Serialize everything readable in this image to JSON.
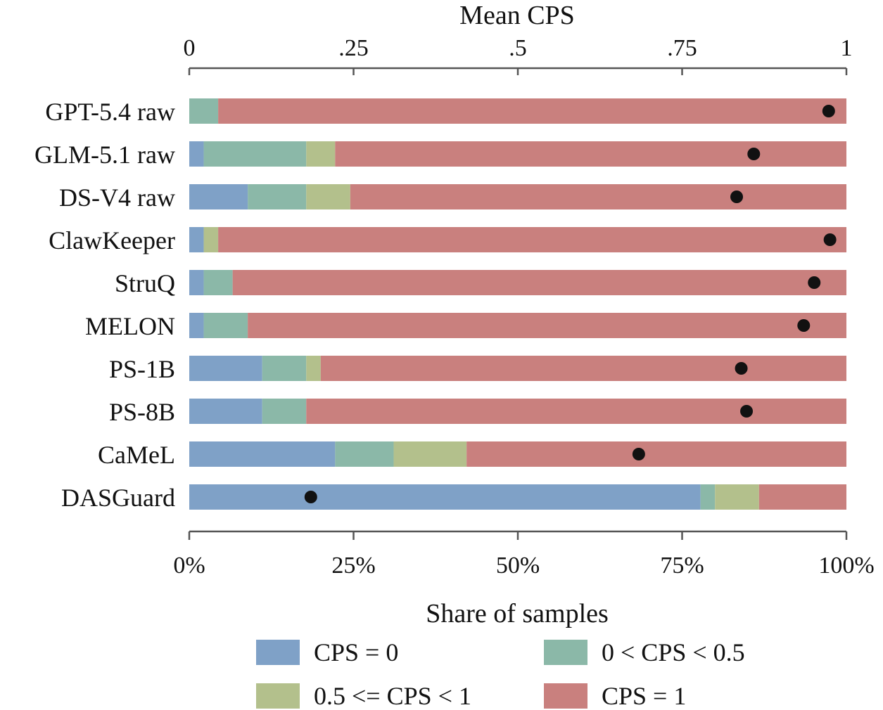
{
  "chart_data": {
    "type": "bar",
    "orientation": "horizontal",
    "stacked": true,
    "xlabel": "Share of samples",
    "x2label": "Mean CPS",
    "xlim": [
      0,
      1
    ],
    "xtick_labels": [
      "0%",
      "25%",
      "50%",
      "75%",
      "100%"
    ],
    "x2tick_labels": [
      "0",
      ".25",
      ".5",
      ".75",
      "1"
    ],
    "x2lim": [
      0,
      1
    ],
    "grid": false,
    "legend_position": "bottom",
    "categories": [
      "GPT-5.4 raw",
      "GLM-5.1 raw",
      "DS-V4 raw",
      "ClawKeeper",
      "StruQ",
      "MELON",
      "PS-1B",
      "PS-8B",
      "CaMeL",
      "DASGuard"
    ],
    "series": [
      {
        "name": "CPS = 0",
        "color": "#7FA1C7",
        "values": [
          0.0,
          0.022,
          0.089,
          0.022,
          0.022,
          0.022,
          0.111,
          0.111,
          0.222,
          0.778
        ]
      },
      {
        "name": "0 < CPS < 0.5",
        "color": "#8BB8A8",
        "values": [
          0.044,
          0.156,
          0.089,
          0.0,
          0.044,
          0.067,
          0.067,
          0.067,
          0.089,
          0.022
        ]
      },
      {
        "name": "0.5 <= CPS < 1",
        "color": "#B3C08C",
        "values": [
          0.0,
          0.044,
          0.067,
          0.022,
          0.0,
          0.0,
          0.022,
          0.0,
          0.111,
          0.067
        ]
      },
      {
        "name": "CPS = 1",
        "color": "#C9807E",
        "values": [
          0.956,
          0.778,
          0.755,
          0.956,
          0.934,
          0.911,
          0.8,
          0.822,
          0.578,
          0.133
        ]
      }
    ],
    "mean_cps": [
      0.973,
      0.859,
      0.833,
      0.975,
      0.951,
      0.935,
      0.84,
      0.848,
      0.684,
      0.185
    ],
    "mean_marker_color": "#111111"
  }
}
